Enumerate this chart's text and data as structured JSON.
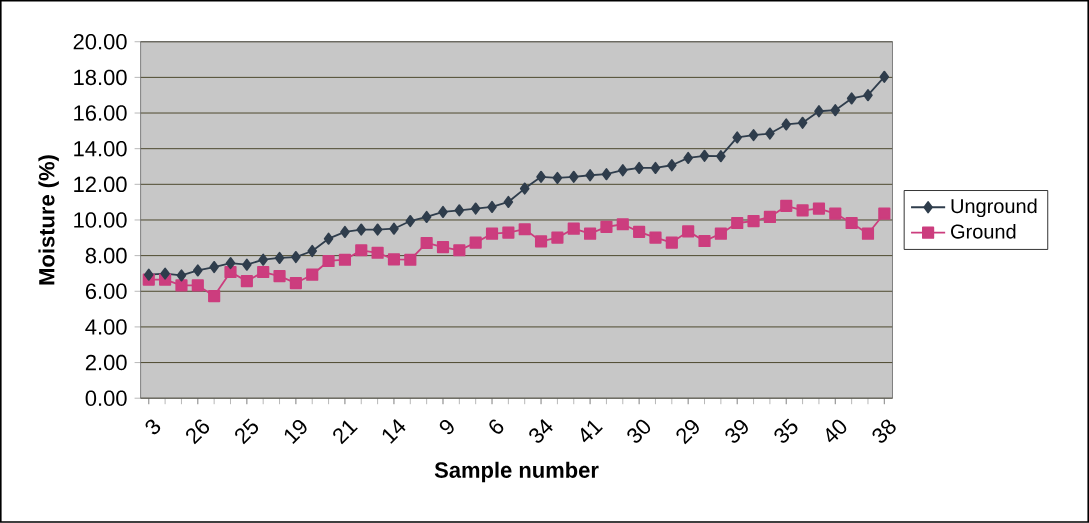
{
  "chart_data": {
    "type": "line",
    "xlabel": "Sample number",
    "ylabel": "Moisture (%)",
    "categories": [
      "3",
      null,
      null,
      "26",
      null,
      null,
      "25",
      null,
      null,
      "19",
      null,
      null,
      "21",
      null,
      null,
      "14",
      null,
      null,
      "9",
      null,
      null,
      "6",
      null,
      null,
      "34",
      null,
      null,
      "41",
      null,
      null,
      "30",
      null,
      null,
      "29",
      null,
      null,
      "39",
      null,
      null,
      "35",
      null,
      null,
      "40",
      null,
      null,
      "38"
    ],
    "series": [
      {
        "name": "Unground",
        "color": "#2f3d4c",
        "marker": "diamond",
        "values": [
          6.93,
          6.99,
          6.89,
          7.17,
          7.36,
          7.58,
          7.49,
          7.77,
          7.87,
          7.92,
          8.26,
          8.95,
          9.33,
          9.46,
          9.46,
          9.51,
          9.94,
          10.17,
          10.45,
          10.54,
          10.64,
          10.73,
          11.01,
          11.76,
          12.42,
          12.36,
          12.42,
          12.51,
          12.57,
          12.79,
          12.92,
          12.92,
          13.07,
          13.48,
          13.6,
          13.58,
          14.63,
          14.76,
          14.85,
          15.36,
          15.45,
          16.1,
          16.16,
          16.82,
          17.0,
          18.03
        ]
      },
      {
        "name": "Ground",
        "color": "#cc3d7e",
        "marker": "square",
        "values": [
          6.65,
          6.65,
          6.33,
          6.33,
          5.73,
          7.08,
          6.57,
          7.08,
          6.85,
          6.46,
          6.93,
          7.7,
          7.77,
          8.3,
          8.16,
          7.79,
          7.77,
          8.71,
          8.48,
          8.3,
          8.73,
          9.23,
          9.29,
          9.48,
          8.8,
          9.01,
          9.51,
          9.23,
          9.61,
          9.76,
          9.33,
          9.01,
          8.73,
          9.36,
          8.82,
          9.23,
          9.83,
          9.94,
          10.17,
          10.79,
          10.54,
          10.64,
          10.36,
          9.83,
          9.23,
          10.36
        ]
      }
    ],
    "ylim": [
      0,
      20
    ],
    "yticks": [
      {
        "value": 0,
        "label": "0.00"
      },
      {
        "value": 2,
        "label": "2.00"
      },
      {
        "value": 4,
        "label": "4.00"
      },
      {
        "value": 6,
        "label": "6.00"
      },
      {
        "value": 8,
        "label": "8.00"
      },
      {
        "value": 10,
        "label": "10.00"
      },
      {
        "value": 12,
        "label": "12.00"
      },
      {
        "value": 14,
        "label": "14.00"
      },
      {
        "value": 16,
        "label": "16.00"
      },
      {
        "value": 18,
        "label": "18.00"
      },
      {
        "value": 20,
        "label": "20.00"
      }
    ],
    "grid": "y",
    "legend": "right",
    "line_style": "solid"
  }
}
